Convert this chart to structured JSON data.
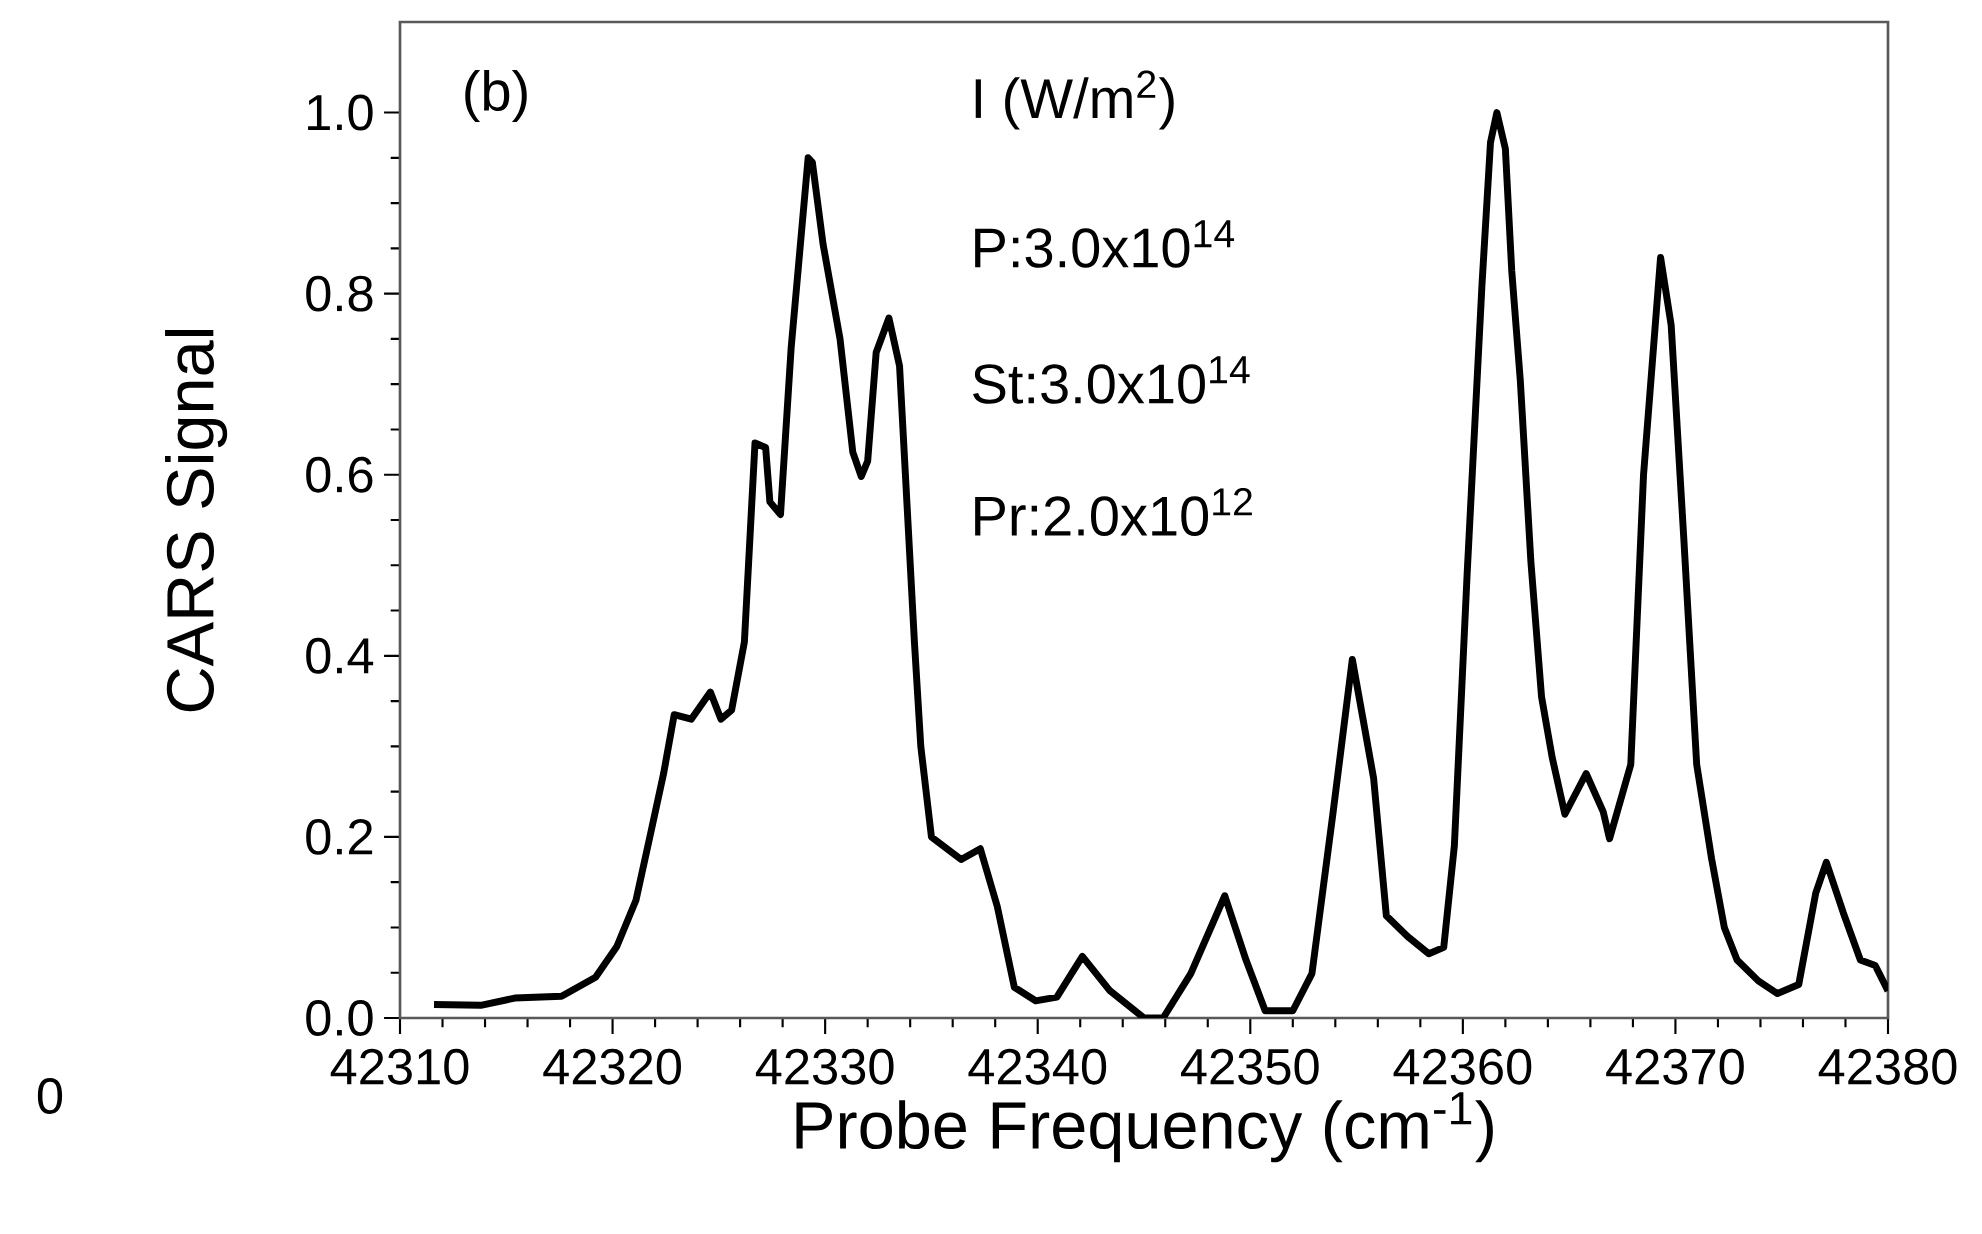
{
  "chart_data": {
    "type": "line",
    "xlabel": "Probe Frequency (cm$^{-1}$)",
    "ylabel": "CARS Signal",
    "annotations": [
      "(b)",
      "I (W/m$^{2}$)",
      "P:3.0x10$^{14}$",
      "St:3.0x10$^{14}$",
      "Pr:2.0x10$^{12}$",
      "0"
    ],
    "x": [
      42311.6,
      42313.8,
      42315.4,
      42317.6,
      42319.2,
      42320.2,
      42321.1,
      42321.8,
      42322.4,
      42322.9,
      42323.7,
      42324.6,
      42325.1,
      42325.6,
      42326.2,
      42326.7,
      42327.2,
      42327.4,
      42327.9,
      42328.4,
      42329.2,
      42329.4,
      42329.9,
      42330.7,
      42331.3,
      42331.7,
      42332.0,
      42332.4,
      42333.0,
      42333.5,
      42334.2,
      42334.5,
      42335.0,
      42336.4,
      42337.3,
      42338.1,
      42338.9,
      42339.9,
      42340.9,
      42342.1,
      42343.4,
      42345.0,
      42345.9,
      42347.2,
      42348.8,
      42349.8,
      42350.7,
      42352.0,
      42352.9,
      42353.9,
      42354.8,
      42355.8,
      42356.4,
      42357.4,
      42358.4,
      42359.1,
      42359.6,
      42360.2,
      42360.9,
      42361.3,
      42361.6,
      42362.0,
      42362.3,
      42362.7,
      42363.2,
      42363.7,
      42364.2,
      42364.8,
      42365.8,
      42366.6,
      42366.9,
      42367.9,
      42368.5,
      42369.3,
      42369.8,
      42370.4,
      42371.0,
      42371.7,
      42372.3,
      42372.9,
      42373.9,
      42374.8,
      42375.8,
      42376.6,
      42377.1,
      42377.9,
      42378.7,
      42379.4,
      42380.0
    ],
    "values": [
      0.015,
      0.014,
      0.022,
      0.024,
      0.045,
      0.079,
      0.13,
      0.205,
      0.27,
      0.335,
      0.33,
      0.36,
      0.33,
      0.34,
      0.415,
      0.635,
      0.63,
      0.57,
      0.556,
      0.74,
      0.95,
      0.945,
      0.855,
      0.75,
      0.625,
      0.598,
      0.615,
      0.735,
      0.773,
      0.72,
      0.415,
      0.3,
      0.2,
      0.175,
      0.187,
      0.123,
      0.034,
      0.019,
      0.023,
      0.068,
      0.03,
      0.0,
      0.0,
      0.049,
      0.135,
      0.064,
      0.008,
      0.008,
      0.049,
      0.228,
      0.396,
      0.265,
      0.113,
      0.09,
      0.071,
      0.078,
      0.19,
      0.49,
      0.81,
      0.967,
      1.0,
      0.96,
      0.825,
      0.705,
      0.504,
      0.355,
      0.288,
      0.225,
      0.27,
      0.228,
      0.198,
      0.28,
      0.6,
      0.84,
      0.765,
      0.527,
      0.28,
      0.176,
      0.1,
      0.064,
      0.041,
      0.027,
      0.037,
      0.138,
      0.172,
      0.116,
      0.064,
      0.058,
      0.03
    ],
    "color": "#000000",
    "xlim": [
      42310,
      42380
    ],
    "xticks": [
      42310,
      42320,
      42330,
      42340,
      42350,
      42360,
      42370,
      42380
    ],
    "ylim": [
      0,
      1.1
    ],
    "yticks": [
      {
        "value": 0,
        "label": "0.0"
      },
      {
        "value": 0.2,
        "label": "0.2"
      },
      {
        "value": 0.4,
        "label": "0.4"
      },
      {
        "value": 0.6,
        "label": "0.6"
      },
      {
        "value": 0.8,
        "label": "0.8"
      },
      {
        "value": 1.0,
        "label": "1.0"
      }
    ]
  }
}
